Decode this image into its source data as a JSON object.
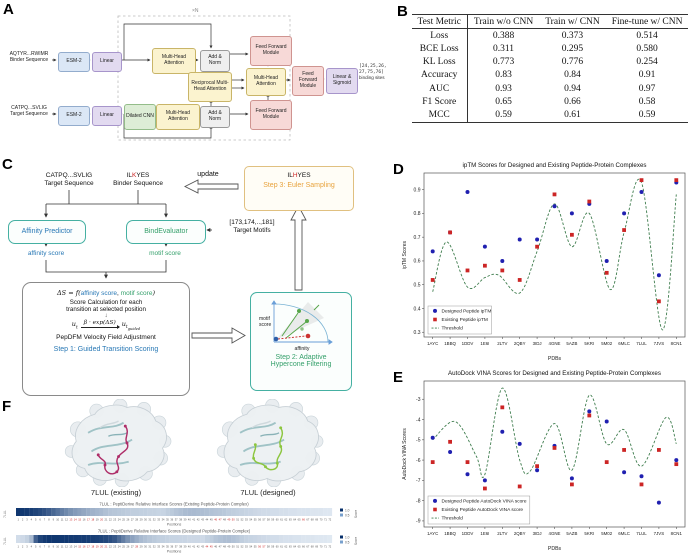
{
  "figure": {
    "panel_labels": {
      "a": "A",
      "b": "B",
      "c": "C",
      "d": "D",
      "e": "E",
      "f": "F"
    }
  },
  "colors": {
    "designed_blue": "#2020b0",
    "existing_red": "#cc2525",
    "threshold_green": "#3f7d4e",
    "peptide_existing": "#ae2d68",
    "peptide_designed": "#8cc63f",
    "heat_dark": "#08306b",
    "heat_light": "#eef5fb"
  },
  "panel_a": {
    "repeat_label": "×N",
    "binder_sequence": "AQTYR...RWIMR",
    "binder_sequence_caption": "Binder Sequence",
    "target_sequence": "CATPQ...SVLIG",
    "target_sequence_caption": "Target Sequence",
    "nodes": {
      "esm2": "ESM-2",
      "linear": "Linear",
      "mha": "Multi-Head Attention",
      "add_norm": "Add & Norm",
      "ffn": "Feed Forward Module",
      "reciprocal": "Reciprocal Multi-Head Attention",
      "dilated_cnn": "Dilated CNN",
      "linear_sigmoid": "Linear & Sigmoid"
    },
    "output_line1": "[24,25,26,",
    "output_line2": "27,75,76]",
    "output_line3": "binding sites"
  },
  "panel_b": {
    "headers": [
      "Test Metric",
      "Train w/o CNN",
      "Train w/ CNN",
      "Fine-tune w/ CNN"
    ],
    "rows": [
      [
        "Loss",
        "0.388",
        "0.373",
        "0.514"
      ],
      [
        "BCE Loss",
        "0.311",
        "0.295",
        "0.580"
      ],
      [
        "KL Loss",
        "0.773",
        "0.776",
        "0.254"
      ],
      [
        "Accuracy",
        "0.83",
        "0.84",
        "0.91"
      ],
      [
        "AUC",
        "0.93",
        "0.94",
        "0.97"
      ],
      [
        "F1 Score",
        "0.65",
        "0.66",
        "0.58"
      ],
      [
        "MCC",
        "0.59",
        "0.61",
        "0.59"
      ]
    ]
  },
  "panel_c": {
    "target_sequence": "CATPQ...SVLIG",
    "target_caption": "Target Sequence",
    "binder_prefix": "IL",
    "binder_hot": "K",
    "binder_suffix": "YES",
    "binder_caption": "Binder Sequence",
    "update_label": "update",
    "step3_seq_prefix": "IL",
    "step3_seq_hot": "H",
    "step3_seq_suffix": "YES",
    "step3_label": "Step 3: Euler Sampling",
    "affinity_predictor": "Affinity Predictor",
    "bind_evaluator": "BindEvaluator",
    "target_motifs_values": "[173,174,..,181]",
    "target_motifs_caption": "Target Motifs",
    "affinity_score": "affinity score",
    "motif_score": "motif score",
    "formula_lhs": "ΔS = f(",
    "formula_arg1": "affinity score",
    "formula_sep": ", ",
    "formula_arg2": "motif score",
    "formula_rhs": ")",
    "calc_line1": "Score Calculation for each",
    "calc_line2": "transition at selected position",
    "down_arrow": "↓",
    "vel_u": "u",
    "vel_u_sub": "t",
    "vel_factor": "β · exp(ΔS)",
    "vel_out": "u",
    "vel_out_sub": "t",
    "vel_out_subsub": "guided",
    "pepdfm_line": "PepDFM Velocity Field Adjustment",
    "step1_label": "Step 1: Guided Transition Scoring",
    "mini_plot": {
      "ylabel1": "motif",
      "ylabel2": "score",
      "xlabel": "affinity"
    },
    "step2_line1": "Step 2: Adaptive",
    "step2_line2": "Hypercone Filtering"
  },
  "chart_data": [
    {
      "type": "scatter",
      "title": "ipTM Scores for Designed and Existing Peptide-Protein Complexes",
      "xlabel": "PDBs",
      "ylabel": "ipTM Scores",
      "categories": [
        "1AYC",
        "1BBQ",
        "1DDV",
        "1E6I",
        "2LTV",
        "2QBY",
        "3IDJ",
        "4GNE",
        "5AZB",
        "5KRI",
        "5M02",
        "6MLC",
        "7LUL",
        "7JVS",
        "8CN1"
      ],
      "ylim": [
        0.28,
        0.97
      ],
      "yticks": [
        0.3,
        0.4,
        0.5,
        0.6,
        0.7,
        0.8,
        0.9
      ],
      "grid": false,
      "legend_position": "lower-left",
      "series": [
        {
          "name": "Designed Peptide ipTM",
          "marker": "circle",
          "color": "#2020b0",
          "values": [
            0.64,
            0.72,
            0.89,
            0.66,
            0.6,
            0.69,
            0.69,
            0.83,
            0.8,
            0.84,
            0.6,
            0.8,
            0.89,
            0.54,
            0.93
          ]
        },
        {
          "name": "Existing Peptide ipTM",
          "marker": "square",
          "color": "#cc2525",
          "values": [
            0.52,
            0.72,
            0.56,
            0.58,
            0.56,
            0.52,
            0.66,
            0.88,
            0.71,
            0.85,
            0.55,
            0.73,
            0.94,
            0.43,
            0.94
          ]
        }
      ],
      "threshold": {
        "name": "Threshold",
        "color": "#3f7d4e",
        "points": [
          [
            0,
            0.47
          ],
          [
            0.8,
            0.68
          ],
          [
            2,
            0.49
          ],
          [
            3,
            0.53
          ],
          [
            3.8,
            0.54
          ],
          [
            5,
            0.465
          ],
          [
            6,
            0.64
          ],
          [
            7,
            0.84
          ],
          [
            8,
            0.66
          ],
          [
            9,
            0.8
          ],
          [
            10.2,
            0.48
          ],
          [
            11,
            0.72
          ],
          [
            12,
            0.93
          ],
          [
            13.2,
            0.31
          ],
          [
            14,
            0.88
          ]
        ]
      }
    },
    {
      "type": "scatter",
      "title": "AutoDock VINA Scores for Designed and Existing Peptide-Protein Complexes",
      "xlabel": "PDBs",
      "ylabel": "AutoDock VINA Scores",
      "categories": [
        "1AYC",
        "1BBQ",
        "1DDV",
        "1E6I",
        "2LTV",
        "2QBY",
        "3IDJ",
        "4GNE",
        "5AZB",
        "5KRI",
        "5M02",
        "6MLC",
        "7LUL",
        "7JVS",
        "8CN1"
      ],
      "ylim": [
        -9.3,
        -2.1
      ],
      "yticks": [
        -9,
        -8,
        -7,
        -6,
        -5,
        -4,
        -3
      ],
      "grid": false,
      "legend_position": "lower-left",
      "series": [
        {
          "name": "Designed Peptide AutoDock VINA score",
          "marker": "circle",
          "color": "#2020b0",
          "values": [
            -4.9,
            -5.6,
            -6.7,
            -7.0,
            -4.6,
            -5.2,
            -6.5,
            -5.3,
            -6.9,
            -3.6,
            -4.1,
            -6.6,
            -6.8,
            -8.1,
            -6.0
          ]
        },
        {
          "name": "Existing Peptide AutoDock VINA score",
          "marker": "square",
          "color": "#cc2525",
          "values": [
            -6.1,
            -5.1,
            -6.1,
            -7.4,
            -3.4,
            -7.3,
            -6.3,
            -5.4,
            -7.2,
            -3.8,
            -6.1,
            -5.5,
            -7.2,
            -5.5,
            -6.2
          ]
        }
      ],
      "threshold": {
        "name": "Threshold",
        "color": "#3f7d4e",
        "points": [
          [
            0,
            -5.0
          ],
          [
            1.3,
            -4.1
          ],
          [
            2.5,
            -5.8
          ],
          [
            3,
            -6.7
          ],
          [
            4,
            -2.45
          ],
          [
            5,
            -6.0
          ],
          [
            5.6,
            -6.55
          ],
          [
            7,
            -4.2
          ],
          [
            8,
            -6.5
          ],
          [
            9,
            -2.8
          ],
          [
            10,
            -5.2
          ],
          [
            11,
            -4.5
          ],
          [
            12,
            -6.3
          ],
          [
            13.4,
            -3.9
          ],
          [
            14,
            -5.2
          ]
        ]
      }
    }
  ],
  "panel_f": {
    "existing_label": "7LUL (existing)",
    "designed_label": "7LUL (designed)",
    "heatmaps": [
      {
        "title": "7LUL : PeptiDerive Relative Interface Scores (Existing Peptide-Protein Complex)",
        "row_label": "7LUL",
        "xlabel": "Positions",
        "legend_ticks": [
          "1.0",
          "0.5"
        ],
        "legend_label": "Score",
        "red_positions": [
          13,
          14,
          15,
          17,
          18,
          20,
          46,
          47,
          49,
          50,
          66
        ],
        "values": [
          0.97,
          0.96,
          0.95,
          0.93,
          0.9,
          0.87,
          0.83,
          0.78,
          0.72,
          0.66,
          0.6,
          0.55,
          0.5,
          0.46,
          0.43,
          0.4,
          0.37,
          0.34,
          0.32,
          0.3,
          0.27,
          0.25,
          0.24,
          0.23,
          0.22,
          0.21,
          0.2,
          0.2,
          0.19,
          0.19,
          0.18,
          0.18,
          0.17,
          0.17,
          0.2,
          0.22,
          0.25,
          0.27,
          0.29,
          0.3,
          0.3,
          0.29,
          0.28,
          0.27,
          0.26,
          0.25,
          0.24,
          0.23,
          0.21,
          0.2,
          0.19,
          0.18,
          0.17,
          0.16,
          0.15,
          0.14,
          0.13,
          0.13,
          0.12,
          0.12,
          0.11,
          0.11,
          0.1,
          0.1,
          0.09,
          0.09,
          0.09,
          0.08,
          0.08,
          0.08,
          0.07,
          0.07
        ]
      },
      {
        "title": "7LUL : PeptiDerive Relative Interface Scores (Designed Peptide-Protein Complex)",
        "row_label": "7LUL",
        "xlabel": "Positions",
        "legend_ticks": [
          "1.0",
          "0.5"
        ],
        "legend_label": "Score",
        "red_positions": [
          15,
          16,
          17,
          18,
          19,
          20,
          21,
          28,
          44,
          45,
          56,
          57
        ],
        "values": [
          0.12,
          0.14,
          0.18,
          0.3,
          0.75,
          0.9,
          0.95,
          0.97,
          0.97,
          0.97,
          0.96,
          0.96,
          0.95,
          0.95,
          0.94,
          0.94,
          0.93,
          0.93,
          0.92,
          0.9,
          0.88,
          0.85,
          0.8,
          0.7,
          0.6,
          0.5,
          0.42,
          0.36,
          0.3,
          0.27,
          0.24,
          0.22,
          0.2,
          0.19,
          0.18,
          0.17,
          0.17,
          0.16,
          0.16,
          0.15,
          0.15,
          0.15,
          0.14,
          0.18,
          0.2,
          0.24,
          0.26,
          0.28,
          0.28,
          0.26,
          0.24,
          0.2,
          0.18,
          0.17,
          0.16,
          0.15,
          0.14,
          0.13,
          0.12,
          0.12,
          0.11,
          0.1,
          0.1,
          0.09,
          0.09,
          0.08,
          0.08,
          0.08,
          0.07,
          0.07,
          0.07,
          0.06
        ]
      }
    ]
  }
}
